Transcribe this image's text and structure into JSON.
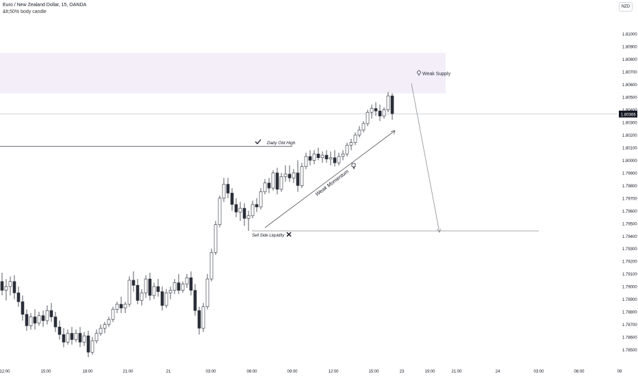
{
  "header": {
    "symbol_line": "Euro / New Zealand Dollar, 15, OANDA",
    "indicator_line": "&lt;50% body candle",
    "currency": "NZD"
  },
  "colors": {
    "bull_fill": "#ffffff",
    "bear_fill": "#2a2e39",
    "candle_border": "#2a2e39",
    "supply_zone": "#f3eef8",
    "line": "#8a8d93",
    "last_price_bg": "#131722"
  },
  "chart_data": {
    "type": "candlestick",
    "symbol": "Euro / New Zealand Dollar, 15, OANDA",
    "y_axis": {
      "range": [
        1.784,
        1.8115
      ],
      "ticks": [
        "1.81000",
        "1.80900",
        "1.80800",
        "1.80700",
        "1.80600",
        "1.80500",
        "1.80400",
        "1.80300",
        "1.80200",
        "1.80100",
        "1.80000",
        "1.79900",
        "1.79800",
        "1.79700",
        "1.79600",
        "1.79500",
        "1.79400",
        "1.79300",
        "1.79200",
        "1.79100",
        "1.79000",
        "1.78900",
        "1.78800",
        "1.78700",
        "1.78600",
        "1.78500"
      ]
    },
    "x_axis": {
      "ticks": [
        "12:00",
        "15:00",
        "18:00",
        "21:00",
        "21",
        "03:00",
        "06:00",
        "09:00",
        "12:00",
        "15:00",
        "23",
        "19:00",
        "21:00",
        "24",
        "03:00",
        "06:00",
        "09"
      ]
    },
    "last_price": "1.80366",
    "supply_zone": {
      "label": "Weak Supply",
      "top": 1.8085,
      "bottom": 1.8053
    },
    "annotations": [
      {
        "id": "daily-old-high",
        "label": "Daily Old High",
        "price": 1.8011,
        "icon": "check-icon"
      },
      {
        "id": "sell-side-liquidity",
        "label": "Sell Side Liquidity",
        "price": 1.7944,
        "icon": "cross-icon"
      },
      {
        "id": "weak-momentum",
        "label": "Weak Momentum",
        "icon": "thumbs-down-icon"
      }
    ],
    "candles": [
      [
        1.7904,
        1.7911,
        1.7893,
        1.7897
      ],
      [
        1.7897,
        1.7906,
        1.7889,
        1.79
      ],
      [
        1.79,
        1.7908,
        1.7893,
        1.7904
      ],
      [
        1.7904,
        1.7909,
        1.789,
        1.7895
      ],
      [
        1.7895,
        1.79,
        1.7884,
        1.7888
      ],
      [
        1.7888,
        1.7893,
        1.7873,
        1.7878
      ],
      [
        1.7878,
        1.7882,
        1.7865,
        1.7869
      ],
      [
        1.7869,
        1.7879,
        1.7866,
        1.7876
      ],
      [
        1.7876,
        1.7882,
        1.7866,
        1.7871
      ],
      [
        1.7871,
        1.788,
        1.7869,
        1.7877
      ],
      [
        1.7877,
        1.7881,
        1.7868,
        1.7873
      ],
      [
        1.7873,
        1.7885,
        1.787,
        1.7881
      ],
      [
        1.7881,
        1.7887,
        1.7872,
        1.7876
      ],
      [
        1.7876,
        1.788,
        1.7864,
        1.7868
      ],
      [
        1.7868,
        1.7873,
        1.7858,
        1.7862
      ],
      [
        1.7862,
        1.7867,
        1.7852,
        1.7856
      ],
      [
        1.7856,
        1.7866,
        1.7854,
        1.7863
      ],
      [
        1.7863,
        1.7868,
        1.7854,
        1.7858
      ],
      [
        1.7858,
        1.7866,
        1.7856,
        1.7863
      ],
      [
        1.7863,
        1.7868,
        1.7852,
        1.7856
      ],
      [
        1.7856,
        1.7864,
        1.7853,
        1.7861
      ],
      [
        1.7861,
        1.7865,
        1.7844,
        1.7848
      ],
      [
        1.7848,
        1.786,
        1.7846,
        1.7857
      ],
      [
        1.7857,
        1.7866,
        1.7855,
        1.7863
      ],
      [
        1.7863,
        1.787,
        1.7861,
        1.7867
      ],
      [
        1.7867,
        1.7872,
        1.7863,
        1.787
      ],
      [
        1.787,
        1.7876,
        1.7868,
        1.7874
      ],
      [
        1.7874,
        1.7884,
        1.7872,
        1.7882
      ],
      [
        1.7882,
        1.7888,
        1.7879,
        1.7886
      ],
      [
        1.7886,
        1.7892,
        1.7879,
        1.7883
      ],
      [
        1.7883,
        1.7888,
        1.7879,
        1.7886
      ],
      [
        1.7886,
        1.7908,
        1.7884,
        1.7905
      ],
      [
        1.7905,
        1.7912,
        1.7896,
        1.7901
      ],
      [
        1.7901,
        1.7906,
        1.7886,
        1.7889
      ],
      [
        1.7889,
        1.7898,
        1.7885,
        1.7895
      ],
      [
        1.7895,
        1.7909,
        1.7891,
        1.7906
      ],
      [
        1.7906,
        1.7911,
        1.7889,
        1.7893
      ],
      [
        1.7893,
        1.7903,
        1.789,
        1.79
      ],
      [
        1.79,
        1.7906,
        1.7892,
        1.7896
      ],
      [
        1.7896,
        1.79,
        1.7881,
        1.7885
      ],
      [
        1.7885,
        1.7898,
        1.7883,
        1.7895
      ],
      [
        1.7895,
        1.79,
        1.789,
        1.7897
      ],
      [
        1.7897,
        1.7906,
        1.7894,
        1.7903
      ],
      [
        1.7903,
        1.791,
        1.7894,
        1.7897
      ],
      [
        1.7897,
        1.7904,
        1.7895,
        1.7902
      ],
      [
        1.7902,
        1.791,
        1.7899,
        1.7907
      ],
      [
        1.7907,
        1.7912,
        1.7893,
        1.7897
      ],
      [
        1.7897,
        1.7902,
        1.7877,
        1.7881
      ],
      [
        1.7881,
        1.7884,
        1.7862,
        1.7867
      ],
      [
        1.7867,
        1.7887,
        1.7864,
        1.7884
      ],
      [
        1.7884,
        1.791,
        1.7882,
        1.7906
      ],
      [
        1.7906,
        1.793,
        1.7904,
        1.7927
      ],
      [
        1.7927,
        1.7952,
        1.7925,
        1.7949
      ],
      [
        1.7949,
        1.7972,
        1.7947,
        1.797
      ],
      [
        1.797,
        1.7986,
        1.7967,
        1.7981
      ],
      [
        1.7981,
        1.7986,
        1.797,
        1.7974
      ],
      [
        1.7974,
        1.7978,
        1.796,
        1.7965
      ],
      [
        1.7965,
        1.797,
        1.7955,
        1.7959
      ],
      [
        1.7959,
        1.7967,
        1.7952,
        1.7962
      ],
      [
        1.7962,
        1.7966,
        1.7948,
        1.7954
      ],
      [
        1.7954,
        1.796,
        1.7944,
        1.7956
      ],
      [
        1.7956,
        1.7968,
        1.7954,
        1.7965
      ],
      [
        1.7965,
        1.797,
        1.7959,
        1.7963
      ],
      [
        1.7963,
        1.7978,
        1.7961,
        1.7975
      ],
      [
        1.7975,
        1.7985,
        1.7973,
        1.7982
      ],
      [
        1.7982,
        1.7986,
        1.7974,
        1.7978
      ],
      [
        1.7978,
        1.7992,
        1.7976,
        1.799
      ],
      [
        1.799,
        1.7994,
        1.7973,
        1.7977
      ],
      [
        1.7977,
        1.799,
        1.7975,
        1.7987
      ],
      [
        1.7987,
        1.7996,
        1.7983,
        1.7989
      ],
      [
        1.7989,
        1.7996,
        1.7983,
        1.7986
      ],
      [
        1.7986,
        1.7993,
        1.7982,
        1.799
      ],
      [
        1.799,
        1.8,
        1.7975,
        1.798
      ],
      [
        1.798,
        1.7998,
        1.7978,
        1.7995
      ],
      [
        1.7995,
        1.8006,
        1.7993,
        1.8003
      ],
      [
        1.8003,
        1.8008,
        1.7996,
        1.8
      ],
      [
        1.8,
        1.8008,
        1.7997,
        1.8005
      ],
      [
        1.8005,
        1.801,
        1.8,
        1.8002
      ],
      [
        1.8002,
        1.8007,
        1.7998,
        1.8004
      ],
      [
        1.8004,
        1.8008,
        1.7998,
        1.8001
      ],
      [
        1.8001,
        1.8007,
        1.7996,
        1.8002
      ],
      [
        1.8002,
        1.8008,
        1.7995,
        1.7998
      ],
      [
        1.7998,
        1.8006,
        1.7996,
        1.8003
      ],
      [
        1.8003,
        1.8008,
        1.8,
        1.8005
      ],
      [
        1.8005,
        1.8014,
        1.8003,
        1.8012
      ],
      [
        1.8012,
        1.8017,
        1.8008,
        1.8014
      ],
      [
        1.8014,
        1.8022,
        1.8012,
        1.802
      ],
      [
        1.802,
        1.8027,
        1.8018,
        1.8024
      ],
      [
        1.8024,
        1.8031,
        1.8022,
        1.8029
      ],
      [
        1.8029,
        1.804,
        1.8027,
        1.8038
      ],
      [
        1.8038,
        1.8044,
        1.8033,
        1.8041
      ],
      [
        1.8041,
        1.8046,
        1.8035,
        1.8039
      ],
      [
        1.8039,
        1.8044,
        1.8031,
        1.8035
      ],
      [
        1.8035,
        1.8042,
        1.8033,
        1.804
      ],
      [
        1.804,
        1.8054,
        1.8038,
        1.8051
      ],
      [
        1.8051,
        1.8053,
        1.8032,
        1.8037
      ]
    ]
  }
}
